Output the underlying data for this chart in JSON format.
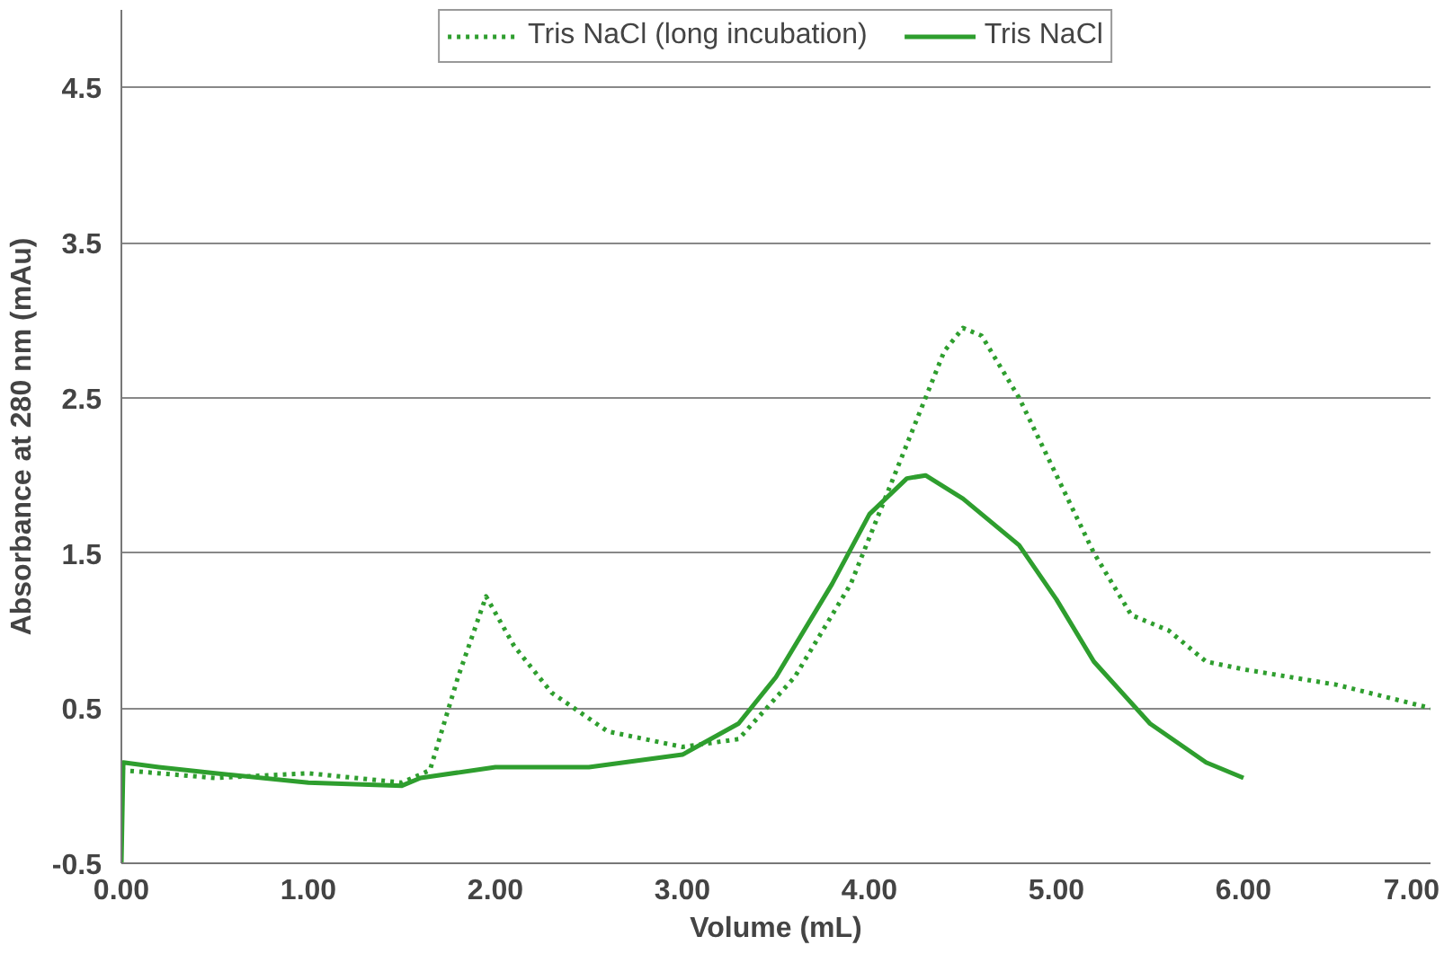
{
  "chart_data": {
    "type": "line",
    "xlabel": "Volume (mL)",
    "ylabel": "Absorbance at 280 nm (mAu)",
    "xlim": [
      0,
      7
    ],
    "ylim": [
      -0.5,
      5
    ],
    "xticks": [
      {
        "value": 0,
        "label": "0.00"
      },
      {
        "value": 1,
        "label": "1.00"
      },
      {
        "value": 2,
        "label": "2.00"
      },
      {
        "value": 3,
        "label": "3.00"
      },
      {
        "value": 4,
        "label": "4.00"
      },
      {
        "value": 5,
        "label": "5.00"
      },
      {
        "value": 6,
        "label": "6.00"
      },
      {
        "value": 7,
        "label": "7.00"
      }
    ],
    "yticks": [
      -0.5,
      0.5,
      1.5,
      2.5,
      3.5,
      4.5
    ],
    "grid": "y",
    "legend": "top",
    "marker": "none",
    "series": [
      {
        "name": "Tris NaCl (long incubation)",
        "color": "#2e9e2e",
        "line_style": "dotted",
        "x": [
          0,
          0.5,
          1.0,
          1.5,
          1.65,
          1.8,
          1.95,
          2.1,
          2.3,
          2.6,
          3.0,
          3.3,
          3.6,
          3.9,
          4.2,
          4.4,
          4.5,
          4.6,
          4.8,
          5.0,
          5.2,
          5.4,
          5.6,
          5.8,
          6.0,
          6.5,
          7.0
        ],
        "values": [
          0.1,
          0.05,
          0.08,
          0.02,
          0.1,
          0.7,
          1.22,
          0.9,
          0.6,
          0.35,
          0.25,
          0.3,
          0.7,
          1.3,
          2.2,
          2.8,
          2.95,
          2.9,
          2.5,
          2.0,
          1.5,
          1.1,
          1.0,
          0.8,
          0.75,
          0.65,
          0.5
        ]
      },
      {
        "name": "Tris NaCl",
        "color": "#2e9e2e",
        "line_style": "solid",
        "x": [
          0,
          0.01,
          0.2,
          0.5,
          1.0,
          1.5,
          1.6,
          2.0,
          2.5,
          3.0,
          3.3,
          3.5,
          3.8,
          4.0,
          4.2,
          4.3,
          4.5,
          4.8,
          5.0,
          5.2,
          5.5,
          5.8,
          6.0
        ],
        "values": [
          -0.5,
          0.15,
          0.12,
          0.08,
          0.02,
          0.0,
          0.05,
          0.12,
          0.12,
          0.2,
          0.4,
          0.7,
          1.3,
          1.75,
          1.98,
          2.0,
          1.85,
          1.55,
          1.2,
          0.8,
          0.4,
          0.15,
          0.05
        ]
      }
    ]
  }
}
